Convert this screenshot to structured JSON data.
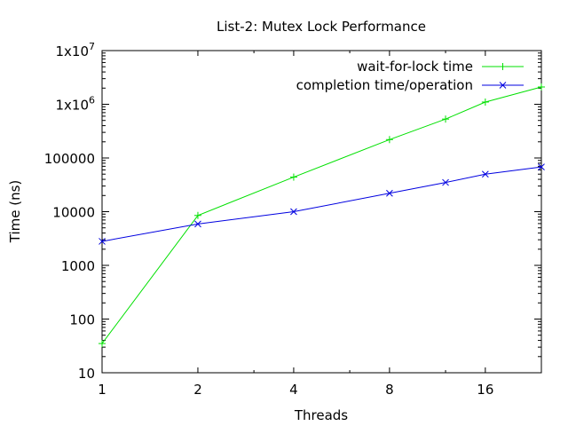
{
  "chart_data": {
    "type": "line",
    "title": "List-2: Mutex Lock Performance",
    "xlabel": "Threads",
    "ylabel": "Time (ns)",
    "xscale": "log2",
    "yscale": "log10",
    "xlim": [
      1,
      24
    ],
    "ylim": [
      10,
      10000000
    ],
    "xticks": [
      {
        "value": 1,
        "label": "1"
      },
      {
        "value": 2,
        "label": "2"
      },
      {
        "value": 4,
        "label": "4"
      },
      {
        "value": 8,
        "label": "8"
      },
      {
        "value": 16,
        "label": "16"
      }
    ],
    "yticks": [
      {
        "value": 10,
        "label": "10"
      },
      {
        "value": 100,
        "label": "100"
      },
      {
        "value": 1000,
        "label": "1000"
      },
      {
        "value": 10000,
        "label": "10000"
      },
      {
        "value": 100000,
        "label": "100000"
      },
      {
        "value": 1000000,
        "label": "1x10",
        "sup": "6"
      },
      {
        "value": 10000000,
        "label": "1x10",
        "sup": "7"
      }
    ],
    "legend_position": "top-right",
    "grid": false,
    "series": [
      {
        "name": "wait-for-lock time",
        "color": "#00e000",
        "marker": "plus",
        "x": [
          1,
          2,
          4,
          8,
          12,
          16,
          24
        ],
        "y": [
          35,
          8500,
          44000,
          220000,
          530000,
          1100000,
          2100000
        ]
      },
      {
        "name": "completion time/operation",
        "color": "#0000e0",
        "marker": "x",
        "x": [
          1,
          2,
          4,
          8,
          12,
          16,
          24
        ],
        "y": [
          2800,
          5900,
          10000,
          22000,
          35000,
          50000,
          68000
        ]
      }
    ]
  }
}
